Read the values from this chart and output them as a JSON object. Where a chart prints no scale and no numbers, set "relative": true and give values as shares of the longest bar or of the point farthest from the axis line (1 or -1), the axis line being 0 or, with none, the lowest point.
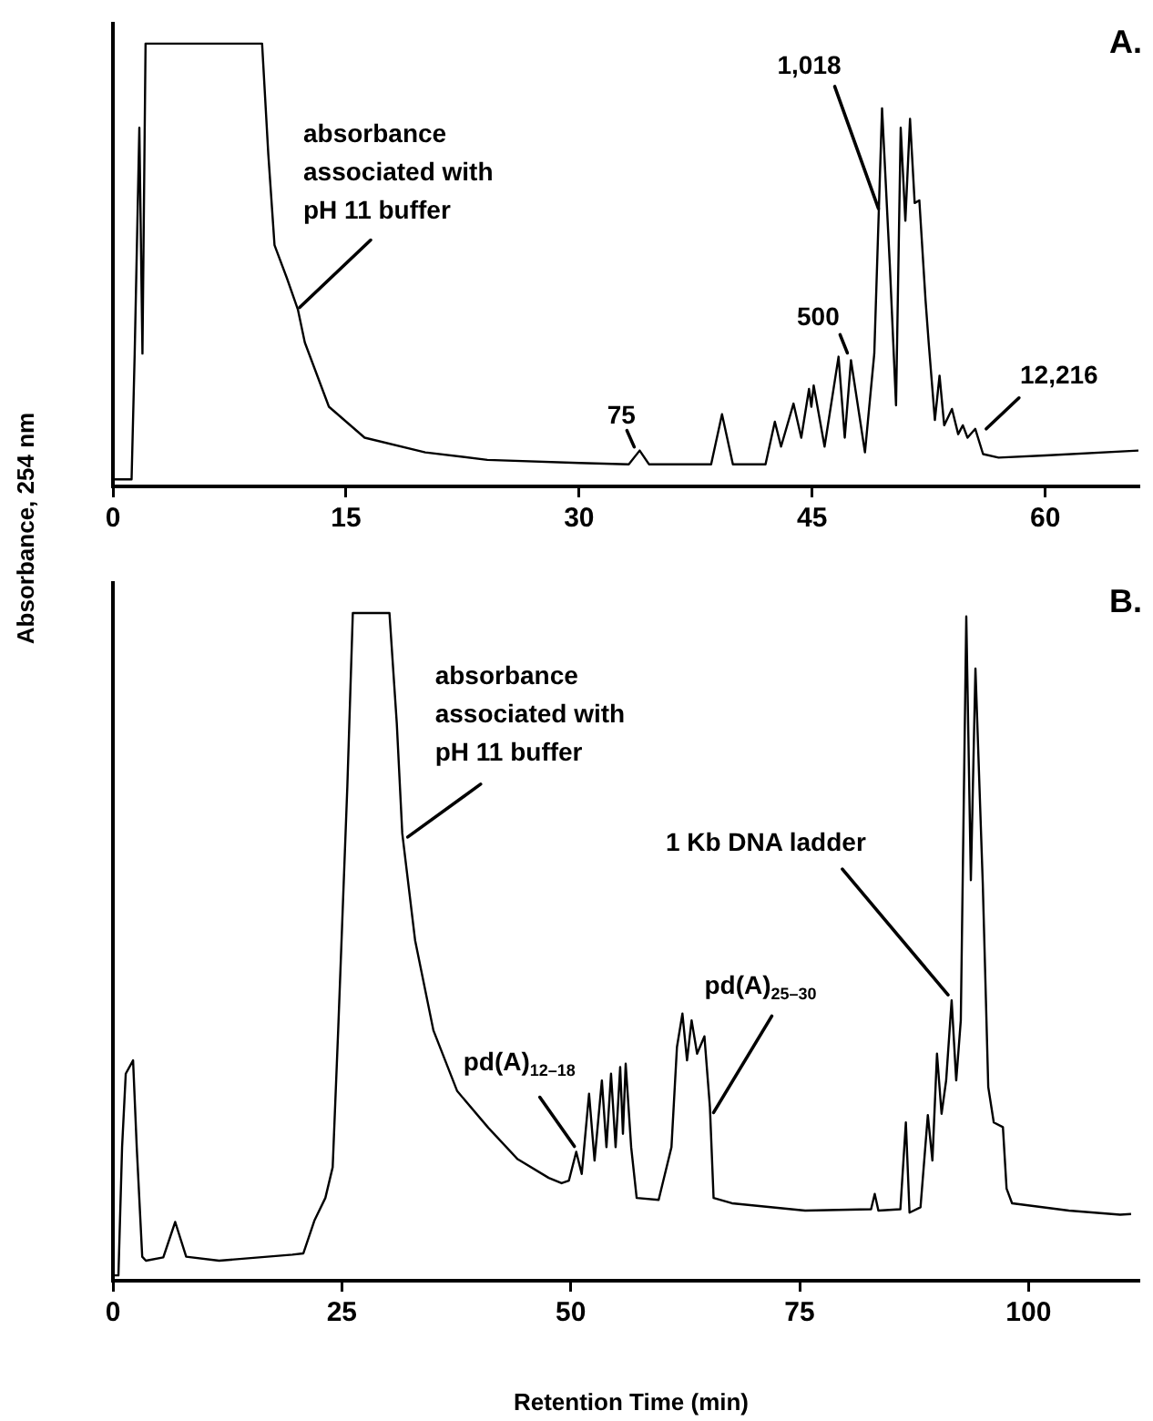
{
  "chart_data": [
    {
      "type": "line",
      "relative": true,
      "ylabel": "Absorbance, 254 nm",
      "xlim": [
        0,
        66
      ],
      "xticks": [
        0,
        15,
        30,
        45,
        60
      ],
      "series": [
        {
          "color": "#000000",
          "x": [
            0,
            1.2,
            1.4,
            1.7,
            1.9,
            2.1,
            9.6,
            10.0,
            10.4,
            11.2,
            11.9,
            12.35,
            13.9,
            16.2,
            20.1,
            24.1,
            30,
            33.2,
            33.9,
            34.5,
            38.5,
            39.2,
            39.9,
            42.0,
            42.6,
            43.0,
            43.8,
            44.3,
            44.8,
            44.95,
            45.1,
            45.8,
            46.7,
            47.1,
            47.5,
            48.4,
            49.0,
            49.5,
            50.0,
            50.4,
            50.7,
            51.0,
            51.3,
            51.6,
            51.9,
            52.3,
            52.5,
            52.9,
            53.2,
            53.5,
            54.0,
            54.4,
            54.7,
            55.0,
            55.5,
            56.0,
            57,
            60,
            66
          ],
          "values": [
            0.016,
            0.016,
            0.3,
            0.81,
            0.3,
            1,
            1,
            0.75,
            0.545,
            0.47,
            0.4,
            0.325,
            0.18,
            0.11,
            0.077,
            0.06,
            0.053,
            0.05,
            0.081,
            0.05,
            0.05,
            0.163,
            0.05,
            0.05,
            0.146,
            0.09,
            0.187,
            0.11,
            0.22,
            0.18,
            0.228,
            0.09,
            0.293,
            0.11,
            0.285,
            0.077,
            0.3,
            0.854,
            0.5,
            0.183,
            0.81,
            0.6,
            0.83,
            0.64,
            0.646,
            0.42,
            0.325,
            0.15,
            0.25,
            0.138,
            0.175,
            0.118,
            0.138,
            0.11,
            0.13,
            0.073,
            0.065,
            0.07,
            0.081
          ]
        }
      ],
      "annotations": [
        "A.",
        {
          "text": "absorbance associated with pH 11 buffer",
          "x": 11.9,
          "y": 0.4
        },
        {
          "text": "75",
          "x": 33.9,
          "y": 0.081
        },
        {
          "text": "500",
          "x": 47.5,
          "y": 0.285
        },
        {
          "text": "1,018",
          "x": 49.5,
          "y": 0.854
        },
        {
          "text": "12,216",
          "x": 55.5,
          "y": 0.13
        }
      ]
    },
    {
      "type": "line",
      "relative": true,
      "xlabel": "Retention Time (min)",
      "xlim": [
        0,
        112
      ],
      "xticks": [
        0,
        25,
        50,
        75,
        100
      ],
      "series": [
        {
          "color": "#000000",
          "x": [
            0,
            0.6,
            1.0,
            1.4,
            2.2,
            2.6,
            3.2,
            3.6,
            5.5,
            6.8,
            8,
            11.6,
            19.6,
            20.8,
            22,
            23.2,
            24,
            24.6,
            25.6,
            26.2,
            30.2,
            31,
            31.6,
            33,
            35,
            37.6,
            41,
            44.2,
            47.6,
            49,
            49.8,
            50.6,
            51.2,
            52,
            52.6,
            53.4,
            53.9,
            54.4,
            54.9,
            55.4,
            55.7,
            56,
            56.6,
            57.2,
            59.6,
            61,
            61.6,
            62.2,
            62.7,
            63.2,
            63.8,
            64.6,
            65.2,
            65.6,
            67.6,
            75.6,
            82.8,
            83.2,
            83.6,
            86,
            86.6,
            87,
            88.2,
            89,
            89.5,
            90,
            90.5,
            91.0,
            91.6,
            92.1,
            92.6,
            93.2,
            93.7,
            94.2,
            95,
            95.6,
            96.2,
            97.2,
            97.6,
            98.2,
            104.4,
            110,
            111.2
          ],
          "values": [
            0.008,
            0.008,
            0.2,
            0.31,
            0.33,
            0.2,
            0.036,
            0.03,
            0.035,
            0.088,
            0.036,
            0.03,
            0.039,
            0.041,
            0.09,
            0.124,
            0.17,
            0.375,
            0.74,
            1,
            1,
            0.835,
            0.67,
            0.51,
            0.375,
            0.284,
            0.229,
            0.182,
            0.154,
            0.146,
            0.15,
            0.193,
            0.16,
            0.28,
            0.18,
            0.3,
            0.2,
            0.31,
            0.2,
            0.32,
            0.22,
            0.325,
            0.2,
            0.124,
            0.121,
            0.2,
            0.35,
            0.4,
            0.33,
            0.39,
            0.34,
            0.366,
            0.26,
            0.124,
            0.116,
            0.105,
            0.107,
            0.13,
            0.105,
            0.107,
            0.237,
            0.102,
            0.11,
            0.248,
            0.18,
            0.34,
            0.25,
            0.3,
            0.42,
            0.3,
            0.39,
            0.995,
            0.6,
            0.917,
            0.595,
            0.29,
            0.237,
            0.23,
            0.138,
            0.116,
            0.105,
            0.099,
            0.1
          ]
        }
      ],
      "annotations": [
        "B.",
        {
          "text": "absorbance associated with pH 11 buffer",
          "x": 31.6,
          "y": 0.67
        },
        {
          "text": "pd(A)$_{12–18}$",
          "x": 50.6,
          "y": 0.193
        },
        {
          "text": "pd(A)$_{25–30}$",
          "x": 65.2,
          "y": 0.26
        },
        {
          "text": "1 Kb DNA ladder",
          "x": 91.6,
          "y": 0.42
        }
      ]
    }
  ]
}
